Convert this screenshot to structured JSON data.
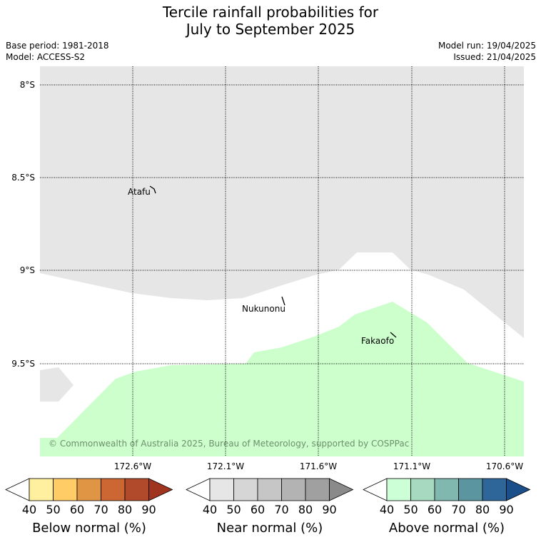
{
  "title_line1": "Tercile rainfall probabilities for",
  "title_line2": "July to September 2025",
  "base_period": "Base period: 1981-2018",
  "model": "Model: ACCESS-S2",
  "model_run": "Model run: 19/04/2025",
  "issued": "Issued: 21/04/2025",
  "map": {
    "lat_labels": [
      "8°S",
      "8.5°S",
      "9°S",
      "9.5°S"
    ],
    "lon_labels": [
      "172.6°W",
      "172.1°W",
      "171.6°W",
      "171.1°W",
      "170.6°W"
    ],
    "places": [
      "Atafu",
      "Nukunonu",
      "Fakaofo"
    ],
    "copyright": "© Commonwealth of Australia 2025, Bureau of Meteorology, supported by COSPPac",
    "colors": {
      "near_normal_light": "#e6e6e6",
      "above_normal_light": "#ccffcc"
    }
  },
  "legends": [
    {
      "title": "Below normal (%)",
      "ticks": [
        "40",
        "50",
        "60",
        "70",
        "80",
        "90"
      ],
      "colors": [
        "#ffffff",
        "#fff0a0",
        "#ffcc66",
        "#e09545",
        "#cc6633",
        "#b04a2a",
        "#a0351f"
      ]
    },
    {
      "title": "Near normal (%)",
      "ticks": [
        "40",
        "50",
        "60",
        "70",
        "80",
        "90"
      ],
      "colors": [
        "#ffffff",
        "#e6e6e6",
        "#d6d6d6",
        "#c6c6c6",
        "#b3b3b3",
        "#a0a0a0",
        "#8a8a8a"
      ]
    },
    {
      "title": "Above normal (%)",
      "ticks": [
        "40",
        "50",
        "60",
        "70",
        "80",
        "90"
      ],
      "colors": [
        "#ffffff",
        "#ccffd6",
        "#a6d9bf",
        "#80b8b0",
        "#5a95a0",
        "#2e6699",
        "#1a4f8a"
      ]
    }
  ]
}
